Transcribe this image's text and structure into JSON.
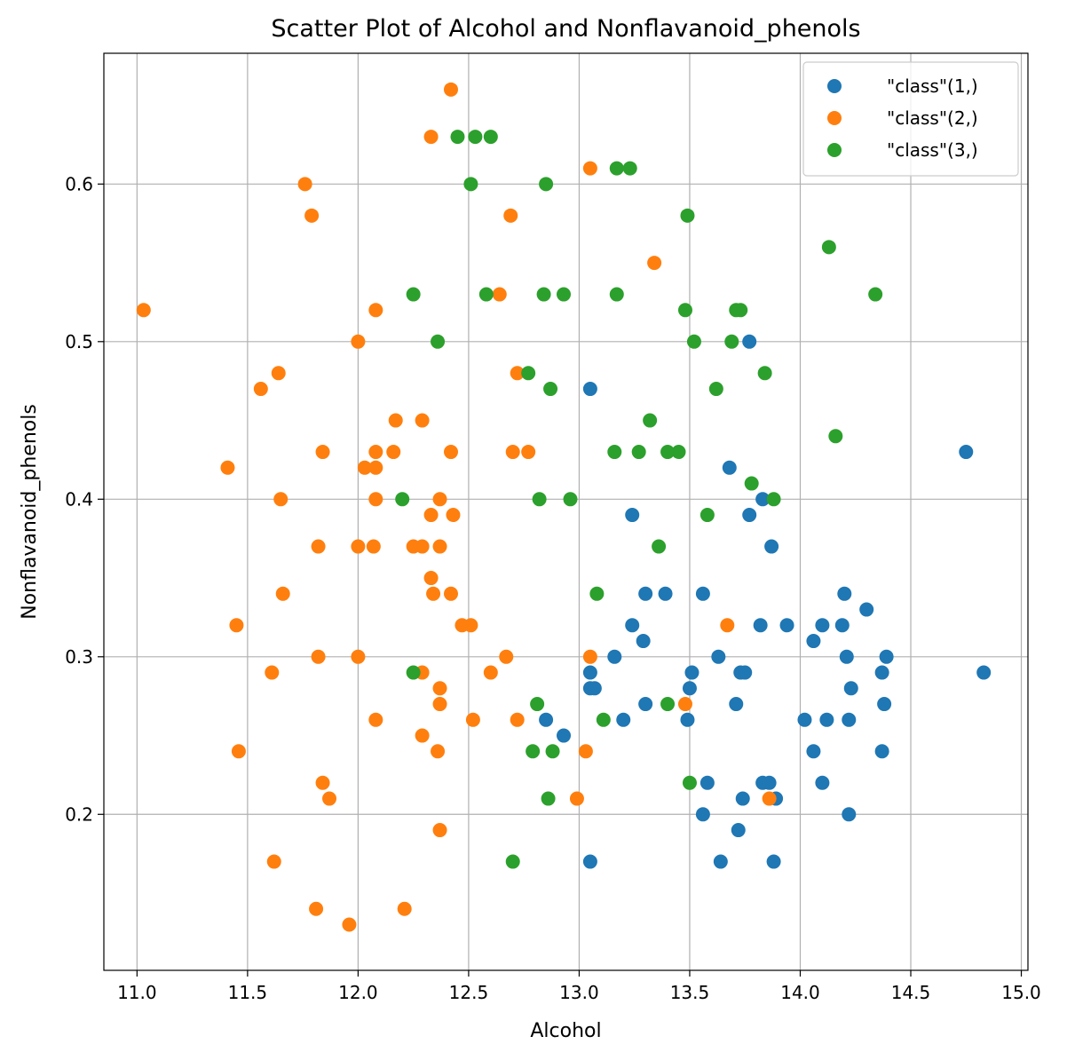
{
  "chart_data": {
    "type": "scatter",
    "title": "Scatter Plot of Alcohol and Nonflavanoid_phenols",
    "xlabel": "Alcohol",
    "ylabel": "Nonflavanoid_phenols",
    "xlim": [
      10.85,
      15.03
    ],
    "ylim": [
      0.101,
      0.683
    ],
    "x_ticks": [
      "11.0",
      "11.5",
      "12.0",
      "12.5",
      "13.0",
      "13.5",
      "14.0",
      "14.5",
      "15.0"
    ],
    "y_ticks": [
      "0.2",
      "0.3",
      "0.4",
      "0.5",
      "0.6"
    ],
    "grid": true,
    "legend_position": "top-right",
    "series": [
      {
        "name": "\"class\"(1,)",
        "color": "#1f77b4",
        "points": [
          [
            13.05,
            0.47
          ],
          [
            13.77,
            0.5
          ],
          [
            14.75,
            0.43
          ],
          [
            13.68,
            0.42
          ],
          [
            13.83,
            0.4
          ],
          [
            13.77,
            0.39
          ],
          [
            13.24,
            0.39
          ],
          [
            13.87,
            0.37
          ],
          [
            13.3,
            0.34
          ],
          [
            13.39,
            0.34
          ],
          [
            13.56,
            0.34
          ],
          [
            14.2,
            0.34
          ],
          [
            14.3,
            0.33
          ],
          [
            13.24,
            0.32
          ],
          [
            13.82,
            0.32
          ],
          [
            13.94,
            0.32
          ],
          [
            14.1,
            0.32
          ],
          [
            14.19,
            0.32
          ],
          [
            13.29,
            0.31
          ],
          [
            14.06,
            0.31
          ],
          [
            13.16,
            0.3
          ],
          [
            13.63,
            0.3
          ],
          [
            14.21,
            0.3
          ],
          [
            14.39,
            0.3
          ],
          [
            13.05,
            0.29
          ],
          [
            13.51,
            0.29
          ],
          [
            13.73,
            0.29
          ],
          [
            13.75,
            0.29
          ],
          [
            14.37,
            0.29
          ],
          [
            14.83,
            0.29
          ],
          [
            13.05,
            0.28
          ],
          [
            13.07,
            0.28
          ],
          [
            13.5,
            0.28
          ],
          [
            14.23,
            0.28
          ],
          [
            13.3,
            0.27
          ],
          [
            13.71,
            0.27
          ],
          [
            14.38,
            0.27
          ],
          [
            12.85,
            0.26
          ],
          [
            13.2,
            0.26
          ],
          [
            13.49,
            0.26
          ],
          [
            14.02,
            0.26
          ],
          [
            14.12,
            0.26
          ],
          [
            14.22,
            0.26
          ],
          [
            12.93,
            0.25
          ],
          [
            14.06,
            0.24
          ],
          [
            14.37,
            0.24
          ],
          [
            13.58,
            0.22
          ],
          [
            13.83,
            0.22
          ],
          [
            13.86,
            0.22
          ],
          [
            14.1,
            0.22
          ],
          [
            13.74,
            0.21
          ],
          [
            13.89,
            0.21
          ],
          [
            13.56,
            0.2
          ],
          [
            14.22,
            0.2
          ],
          [
            13.72,
            0.19
          ],
          [
            13.05,
            0.17
          ],
          [
            13.64,
            0.17
          ],
          [
            13.88,
            0.17
          ]
        ]
      },
      {
        "name": "\"class\"(2,)",
        "color": "#ff7f0e",
        "points": [
          [
            12.42,
            0.66
          ],
          [
            12.33,
            0.63
          ],
          [
            11.76,
            0.6
          ],
          [
            13.05,
            0.61
          ],
          [
            11.79,
            0.58
          ],
          [
            12.69,
            0.58
          ],
          [
            13.34,
            0.55
          ],
          [
            11.03,
            0.52
          ],
          [
            12.08,
            0.52
          ],
          [
            12.64,
            0.53
          ],
          [
            12.0,
            0.5
          ],
          [
            11.56,
            0.47
          ],
          [
            11.64,
            0.48
          ],
          [
            12.72,
            0.48
          ],
          [
            12.17,
            0.45
          ],
          [
            12.29,
            0.45
          ],
          [
            11.41,
            0.42
          ],
          [
            11.84,
            0.43
          ],
          [
            12.03,
            0.42
          ],
          [
            12.08,
            0.42
          ],
          [
            12.08,
            0.43
          ],
          [
            12.16,
            0.43
          ],
          [
            12.42,
            0.43
          ],
          [
            12.7,
            0.43
          ],
          [
            12.77,
            0.43
          ],
          [
            11.65,
            0.4
          ],
          [
            12.08,
            0.4
          ],
          [
            12.37,
            0.4
          ],
          [
            12.33,
            0.39
          ],
          [
            12.43,
            0.39
          ],
          [
            11.82,
            0.37
          ],
          [
            12.0,
            0.37
          ],
          [
            12.07,
            0.37
          ],
          [
            12.25,
            0.37
          ],
          [
            12.29,
            0.37
          ],
          [
            12.37,
            0.37
          ],
          [
            12.33,
            0.35
          ],
          [
            11.66,
            0.34
          ],
          [
            12.34,
            0.34
          ],
          [
            12.42,
            0.34
          ],
          [
            11.45,
            0.32
          ],
          [
            12.47,
            0.32
          ],
          [
            12.51,
            0.32
          ],
          [
            13.67,
            0.32
          ],
          [
            11.82,
            0.3
          ],
          [
            12.0,
            0.3
          ],
          [
            12.67,
            0.3
          ],
          [
            13.05,
            0.3
          ],
          [
            11.61,
            0.29
          ],
          [
            12.29,
            0.29
          ],
          [
            12.6,
            0.29
          ],
          [
            12.37,
            0.28
          ],
          [
            12.37,
            0.27
          ],
          [
            13.48,
            0.27
          ],
          [
            12.08,
            0.26
          ],
          [
            12.52,
            0.26
          ],
          [
            12.72,
            0.26
          ],
          [
            12.29,
            0.25
          ],
          [
            11.46,
            0.24
          ],
          [
            12.36,
            0.24
          ],
          [
            13.03,
            0.24
          ],
          [
            11.84,
            0.22
          ],
          [
            11.87,
            0.21
          ],
          [
            12.99,
            0.21
          ],
          [
            13.86,
            0.21
          ],
          [
            12.37,
            0.19
          ],
          [
            11.62,
            0.17
          ],
          [
            11.81,
            0.14
          ],
          [
            12.21,
            0.14
          ],
          [
            11.96,
            0.13
          ]
        ]
      },
      {
        "name": "\"class\"(3,)",
        "color": "#2ca02c",
        "points": [
          [
            12.45,
            0.63
          ],
          [
            12.53,
            0.63
          ],
          [
            12.6,
            0.63
          ],
          [
            13.17,
            0.61
          ],
          [
            13.23,
            0.61
          ],
          [
            12.51,
            0.6
          ],
          [
            12.85,
            0.6
          ],
          [
            13.49,
            0.58
          ],
          [
            14.13,
            0.56
          ],
          [
            12.25,
            0.53
          ],
          [
            12.58,
            0.53
          ],
          [
            12.84,
            0.53
          ],
          [
            12.93,
            0.53
          ],
          [
            13.17,
            0.53
          ],
          [
            14.34,
            0.53
          ],
          [
            13.48,
            0.52
          ],
          [
            13.71,
            0.52
          ],
          [
            13.73,
            0.52
          ],
          [
            12.36,
            0.5
          ],
          [
            13.52,
            0.5
          ],
          [
            13.69,
            0.5
          ],
          [
            12.77,
            0.48
          ],
          [
            13.84,
            0.48
          ],
          [
            12.87,
            0.47
          ],
          [
            13.62,
            0.47
          ],
          [
            13.32,
            0.45
          ],
          [
            14.16,
            0.44
          ],
          [
            13.16,
            0.43
          ],
          [
            13.27,
            0.43
          ],
          [
            13.4,
            0.43
          ],
          [
            13.45,
            0.43
          ],
          [
            13.78,
            0.41
          ],
          [
            12.2,
            0.4
          ],
          [
            12.82,
            0.4
          ],
          [
            12.96,
            0.4
          ],
          [
            13.88,
            0.4
          ],
          [
            13.58,
            0.39
          ],
          [
            13.36,
            0.37
          ],
          [
            13.08,
            0.34
          ],
          [
            12.25,
            0.29
          ],
          [
            12.81,
            0.27
          ],
          [
            13.4,
            0.27
          ],
          [
            13.11,
            0.26
          ],
          [
            12.79,
            0.24
          ],
          [
            12.88,
            0.24
          ],
          [
            13.5,
            0.22
          ],
          [
            12.86,
            0.21
          ],
          [
            12.7,
            0.17
          ]
        ]
      }
    ]
  }
}
